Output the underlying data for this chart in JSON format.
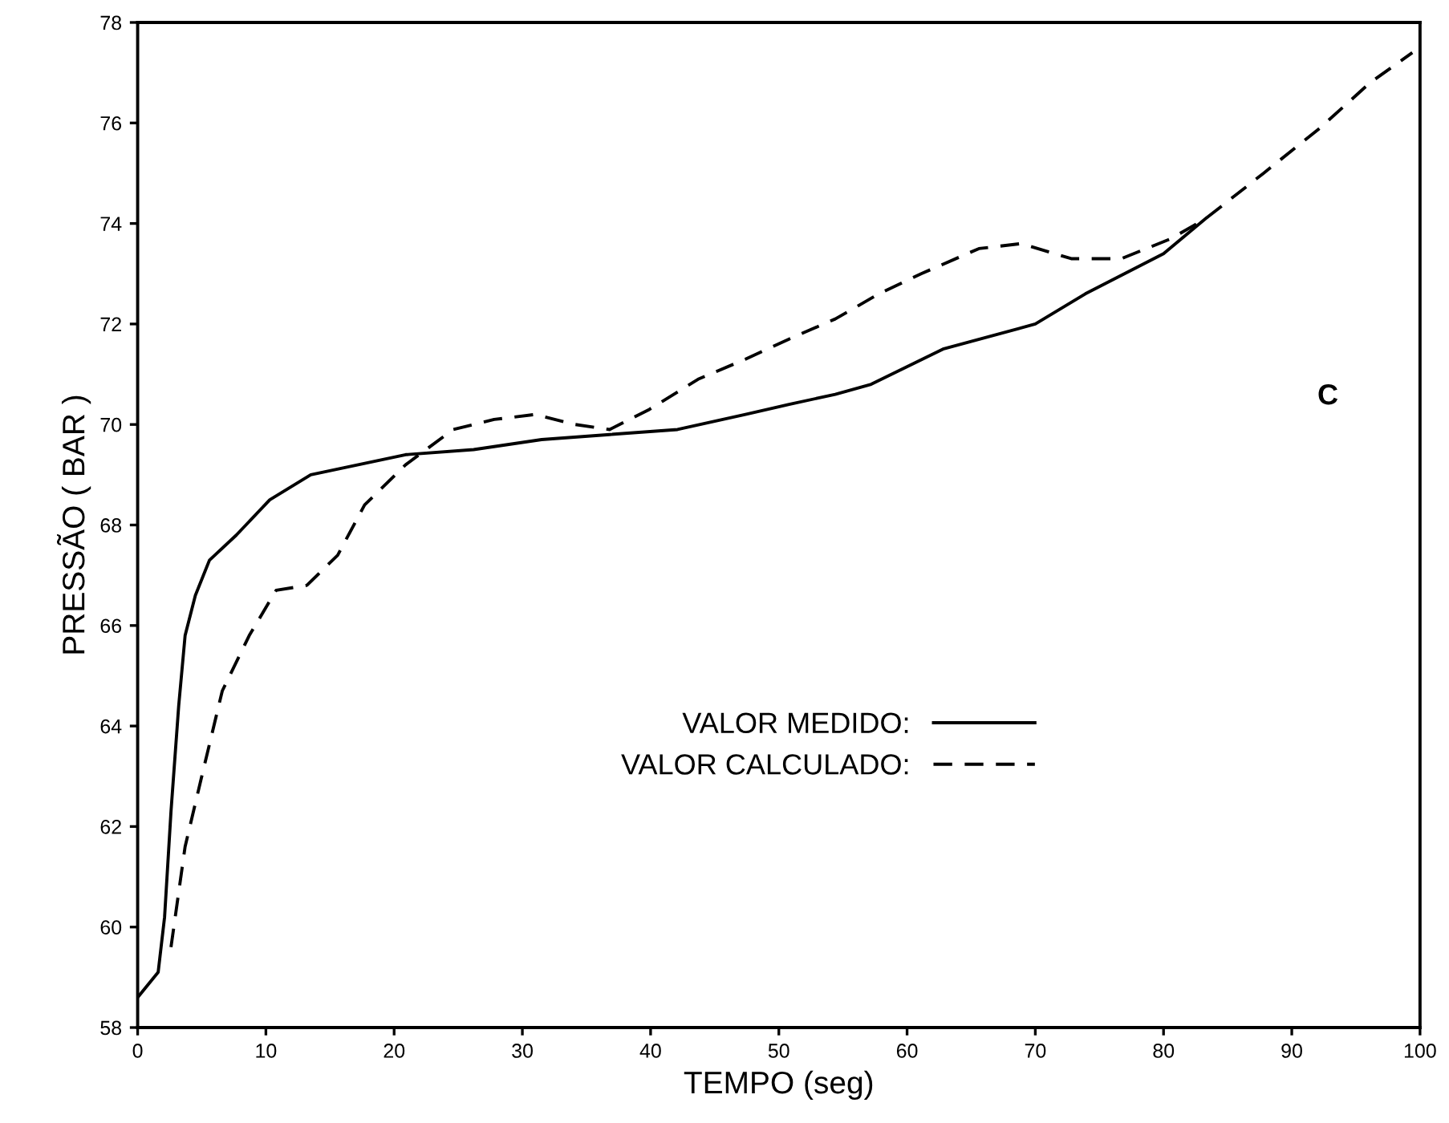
{
  "chart_data": {
    "type": "line",
    "xlabel": "TEMPO (seg)",
    "ylabel": "PRESSÃO ( BAR )",
    "annotations": [
      "C"
    ],
    "xlim": [
      0,
      100
    ],
    "ylim": [
      58,
      78
    ],
    "xticks": [
      0,
      10,
      20,
      30,
      40,
      50,
      60,
      70,
      80,
      90,
      100
    ],
    "yticks": [
      58,
      60,
      62,
      64,
      66,
      68,
      70,
      72,
      74,
      76,
      78
    ],
    "grid": false,
    "legend": "bottom right",
    "marker": "none",
    "series": [
      {
        "name": "VALOR MEDIDO:",
        "color": "#000000",
        "line_style": "solid",
        "x": [
          0,
          1.6,
          2.1,
          2.6,
          3.2,
          3.7,
          4.5,
          5.6,
          7.7,
          10.3,
          13.5,
          17.2,
          20.9,
          26.2,
          31.5,
          36.8,
          42.1,
          47.4,
          50.8,
          54.4,
          57.2,
          62.8,
          70,
          73.9,
          80,
          83.3
        ],
        "values": [
          58.6,
          59.1,
          60.2,
          62.3,
          64.4,
          65.8,
          66.6,
          67.3,
          67.8,
          68.5,
          69.0,
          69.2,
          69.4,
          69.5,
          69.7,
          69.8,
          69.9,
          70.2,
          70.4,
          70.6,
          70.8,
          71.5,
          72.0,
          72.6,
          73.4,
          74.1
        ]
      },
      {
        "name": "VALOR CALCULADO:",
        "color": "#000000",
        "line_style": "dashed",
        "x": [
          2.6,
          3.7,
          5.0,
          6.6,
          8.7,
          10.8,
          13.2,
          15.6,
          17.7,
          20.9,
          24.6,
          27.8,
          31.0,
          34.1,
          36.8,
          39.9,
          43.7,
          47.4,
          50.8,
          54.4,
          57.8,
          61.1,
          65.6,
          68.9,
          72.8,
          76.7,
          80.6,
          83.3,
          87.8,
          92.2,
          96.1,
          99.4
        ],
        "values": [
          59.6,
          61.6,
          63.0,
          64.7,
          65.8,
          66.7,
          66.8,
          67.4,
          68.4,
          69.2,
          69.9,
          70.1,
          70.2,
          70.0,
          69.9,
          70.3,
          70.9,
          71.3,
          71.7,
          72.1,
          72.6,
          73.0,
          73.5,
          73.6,
          73.3,
          73.3,
          73.7,
          74.1,
          75.0,
          75.9,
          76.8,
          77.4
        ]
      }
    ]
  }
}
